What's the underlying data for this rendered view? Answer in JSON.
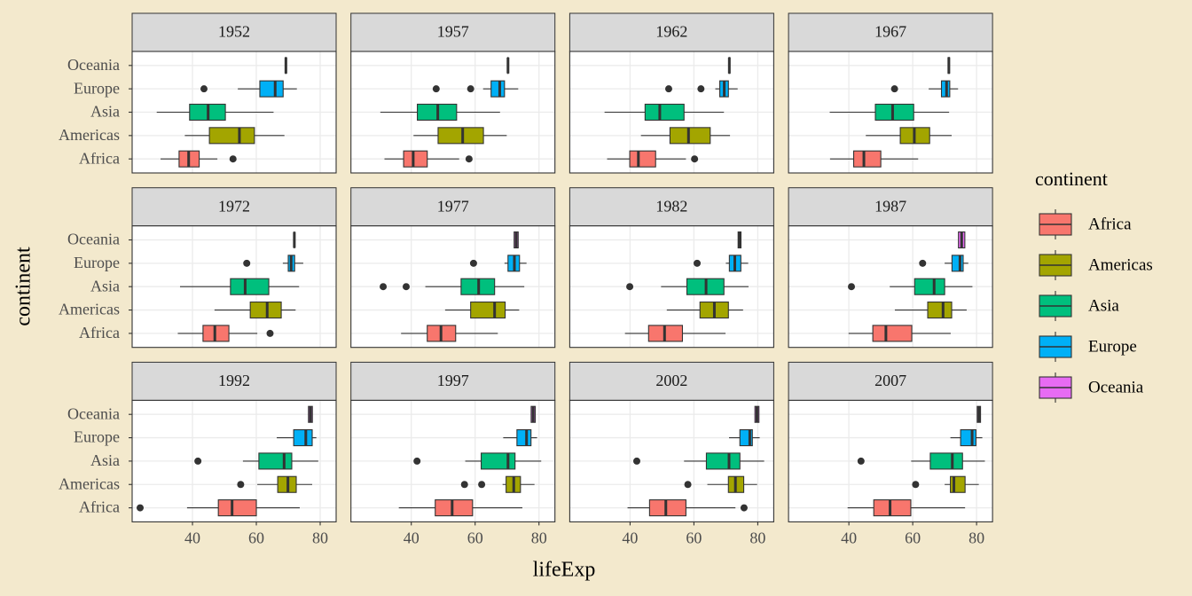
{
  "chart_data": {
    "type": "boxplot",
    "x_label": "lifeExp",
    "y_label": "continent",
    "legend_title": "continent",
    "legend_position": "right",
    "grid": true,
    "categories": [
      "Africa",
      "Americas",
      "Asia",
      "Europe",
      "Oceania"
    ],
    "series": [
      {
        "name": "Africa",
        "color": "#F8766D"
      },
      {
        "name": "Americas",
        "color": "#A3A500"
      },
      {
        "name": "Asia",
        "color": "#00BF7D"
      },
      {
        "name": "Europe",
        "color": "#00B0F6"
      },
      {
        "name": "Oceania",
        "color": "#E76BF3"
      }
    ],
    "xlim": [
      21.1,
      85
    ],
    "xticks": [
      40,
      60,
      80
    ],
    "panels": [
      {
        "title": "1952",
        "boxes": [
          {
            "lower": 30.0,
            "q1": 35.8,
            "median": 38.8,
            "q3": 42.1,
            "upper": 47.8,
            "outliers": [
              52.7
            ]
          },
          {
            "lower": 37.6,
            "q1": 45.3,
            "median": 54.7,
            "q3": 59.4,
            "upper": 68.8,
            "outliers": []
          },
          {
            "lower": 28.8,
            "q1": 39.1,
            "median": 44.9,
            "q3": 50.3,
            "upper": 65.4,
            "outliers": []
          },
          {
            "lower": 54.2,
            "q1": 61.1,
            "median": 65.9,
            "q3": 68.4,
            "upper": 72.7,
            "outliers": [
              43.6
            ]
          },
          {
            "lower": 69.12,
            "q1": 69.12,
            "median": 69.26,
            "q3": 69.39,
            "upper": 69.39,
            "outliers": []
          }
        ]
      },
      {
        "title": "1957",
        "boxes": [
          {
            "lower": 31.6,
            "q1": 37.6,
            "median": 40.6,
            "q3": 45.0,
            "upper": 55.0,
            "outliers": [
              58.1
            ]
          },
          {
            "lower": 40.7,
            "q1": 48.4,
            "median": 56.1,
            "q3": 62.6,
            "upper": 69.9,
            "outliers": []
          },
          {
            "lower": 30.3,
            "q1": 41.9,
            "median": 48.3,
            "q3": 54.2,
            "upper": 67.8,
            "outliers": []
          },
          {
            "lower": 62.5,
            "q1": 65.0,
            "median": 67.7,
            "q3": 69.2,
            "upper": 73.5,
            "outliers": [
              47.8,
              58.6
            ]
          },
          {
            "lower": 70.26,
            "q1": 70.26,
            "median": 70.3,
            "q3": 70.33,
            "upper": 70.33,
            "outliers": []
          }
        ]
      },
      {
        "title": "1962",
        "boxes": [
          {
            "lower": 32.8,
            "q1": 39.9,
            "median": 42.6,
            "q3": 48.0,
            "upper": 57.5,
            "outliers": [
              60.2
            ]
          },
          {
            "lower": 43.4,
            "q1": 52.5,
            "median": 58.3,
            "q3": 65.1,
            "upper": 71.3,
            "outliers": []
          },
          {
            "lower": 32.0,
            "q1": 44.7,
            "median": 49.3,
            "q3": 56.9,
            "upper": 69.4,
            "outliers": []
          },
          {
            "lower": 66.7,
            "q1": 68.1,
            "median": 69.5,
            "q3": 70.8,
            "upper": 73.7,
            "outliers": [
              52.1,
              62.2
            ]
          },
          {
            "lower": 70.99,
            "q1": 70.99,
            "median": 71.09,
            "q3": 71.24,
            "upper": 71.24,
            "outliers": []
          }
        ]
      },
      {
        "title": "1967",
        "boxes": [
          {
            "lower": 34.1,
            "q1": 41.5,
            "median": 44.7,
            "q3": 50.0,
            "upper": 61.7,
            "outliers": []
          },
          {
            "lower": 45.3,
            "q1": 56.1,
            "median": 60.5,
            "q3": 65.3,
            "upper": 72.2,
            "outliers": []
          },
          {
            "lower": 34.0,
            "q1": 48.3,
            "median": 53.7,
            "q3": 60.3,
            "upper": 71.4,
            "outliers": []
          },
          {
            "lower": 65.0,
            "q1": 69.0,
            "median": 70.6,
            "q3": 71.6,
            "upper": 74.2,
            "outliers": [
              54.3
            ]
          },
          {
            "lower": 71.1,
            "q1": 71.1,
            "median": 71.31,
            "q3": 71.52,
            "upper": 71.52,
            "outliers": []
          }
        ]
      },
      {
        "title": "1972",
        "boxes": [
          {
            "lower": 35.4,
            "q1": 43.3,
            "median": 47.0,
            "q3": 51.4,
            "upper": 60.3,
            "outliers": [
              64.3
            ]
          },
          {
            "lower": 46.9,
            "q1": 58.1,
            "median": 63.4,
            "q3": 67.8,
            "upper": 72.3,
            "outliers": []
          },
          {
            "lower": 36.1,
            "q1": 51.9,
            "median": 56.5,
            "q3": 63.9,
            "upper": 73.4,
            "outliers": []
          },
          {
            "lower": 68.3,
            "q1": 70.0,
            "median": 70.9,
            "q3": 72.0,
            "upper": 74.7,
            "outliers": [
              57.0
            ]
          },
          {
            "lower": 71.89,
            "q1": 71.89,
            "median": 71.91,
            "q3": 71.93,
            "upper": 71.93,
            "outliers": []
          }
        ]
      },
      {
        "title": "1977",
        "boxes": [
          {
            "lower": 36.8,
            "q1": 45.0,
            "median": 49.3,
            "q3": 53.9,
            "upper": 67.1,
            "outliers": []
          },
          {
            "lower": 50.6,
            "q1": 58.6,
            "median": 66.1,
            "q3": 69.4,
            "upper": 73.8,
            "outliers": []
          },
          {
            "lower": 44.4,
            "q1": 55.6,
            "median": 61.1,
            "q3": 66.1,
            "upper": 75.4,
            "outliers": [
              31.2,
              38.4
            ]
          },
          {
            "lower": 69.2,
            "q1": 70.3,
            "median": 72.3,
            "q3": 73.9,
            "upper": 76.1,
            "outliers": [
              59.5
            ]
          },
          {
            "lower": 72.22,
            "q1": 72.22,
            "median": 72.86,
            "q3": 73.49,
            "upper": 73.49,
            "outliers": []
          }
        ]
      },
      {
        "title": "1982",
        "boxes": [
          {
            "lower": 38.4,
            "q1": 45.8,
            "median": 50.8,
            "q3": 56.4,
            "upper": 69.9,
            "outliers": []
          },
          {
            "lower": 51.5,
            "q1": 61.9,
            "median": 66.4,
            "q3": 70.8,
            "upper": 75.4,
            "outliers": []
          },
          {
            "lower": 49.7,
            "q1": 57.8,
            "median": 63.8,
            "q3": 69.4,
            "upper": 77.1,
            "outliers": [
              39.9
            ]
          },
          {
            "lower": 70.0,
            "q1": 71.1,
            "median": 72.8,
            "q3": 74.7,
            "upper": 77.0,
            "outliers": [
              61.0
            ]
          },
          {
            "lower": 73.84,
            "q1": 73.84,
            "median": 74.29,
            "q3": 74.74,
            "upper": 74.74,
            "outliers": []
          }
        ]
      },
      {
        "title": "1987",
        "boxes": [
          {
            "lower": 39.9,
            "q1": 47.5,
            "median": 51.6,
            "q3": 59.7,
            "upper": 71.9,
            "outliers": []
          },
          {
            "lower": 54.4,
            "q1": 64.7,
            "median": 69.5,
            "q3": 72.2,
            "upper": 76.9,
            "outliers": []
          },
          {
            "lower": 52.8,
            "q1": 60.6,
            "median": 66.7,
            "q3": 70.0,
            "upper": 78.7,
            "outliers": [
              40.8
            ]
          },
          {
            "lower": 70.0,
            "q1": 72.3,
            "median": 74.8,
            "q3": 75.8,
            "upper": 77.4,
            "outliers": [
              63.1
            ]
          },
          {
            "lower": 74.32,
            "q1": 74.32,
            "median": 75.32,
            "q3": 76.32,
            "upper": 76.32,
            "outliers": []
          }
        ]
      },
      {
        "title": "1992",
        "boxes": [
          {
            "lower": 38.3,
            "q1": 48.1,
            "median": 52.4,
            "q3": 60.0,
            "upper": 73.6,
            "outliers": [
              23.6
            ]
          },
          {
            "lower": 60.3,
            "q1": 66.7,
            "median": 69.9,
            "q3": 72.5,
            "upper": 77.5,
            "outliers": [
              55.1
            ]
          },
          {
            "lower": 55.8,
            "q1": 60.8,
            "median": 68.7,
            "q3": 71.1,
            "upper": 79.4,
            "outliers": [
              41.7
            ]
          },
          {
            "lower": 66.4,
            "q1": 71.7,
            "median": 75.5,
            "q3": 77.5,
            "upper": 78.8,
            "outliers": []
          },
          {
            "lower": 76.33,
            "q1": 76.33,
            "median": 76.95,
            "q3": 77.56,
            "upper": 77.56,
            "outliers": []
          }
        ]
      },
      {
        "title": "1997",
        "boxes": [
          {
            "lower": 36.1,
            "q1": 47.5,
            "median": 52.8,
            "q3": 59.2,
            "upper": 74.8,
            "outliers": []
          },
          {
            "lower": 68.6,
            "q1": 69.7,
            "median": 72.1,
            "q3": 74.2,
            "upper": 78.6,
            "outliers": [
              56.67,
              62.05
            ]
          },
          {
            "lower": 56.9,
            "q1": 61.9,
            "median": 70.3,
            "q3": 72.5,
            "upper": 80.7,
            "outliers": [
              41.8
            ]
          },
          {
            "lower": 68.8,
            "q1": 73.1,
            "median": 76.1,
            "q3": 77.5,
            "upper": 79.4,
            "outliers": []
          },
          {
            "lower": 77.55,
            "q1": 77.55,
            "median": 78.19,
            "q3": 78.83,
            "upper": 78.83,
            "outliers": []
          }
        ]
      },
      {
        "title": "2002",
        "boxes": [
          {
            "lower": 39.2,
            "q1": 46.1,
            "median": 51.2,
            "q3": 57.5,
            "upper": 73.0,
            "outliers": [
              75.7
            ]
          },
          {
            "lower": 64.2,
            "q1": 70.8,
            "median": 73.0,
            "q3": 75.6,
            "upper": 79.8,
            "outliers": [
              58.1
            ]
          },
          {
            "lower": 56.9,
            "q1": 63.9,
            "median": 71.0,
            "q3": 74.4,
            "upper": 82.0,
            "outliers": [
              42.1
            ]
          },
          {
            "lower": 71.0,
            "q1": 74.4,
            "median": 77.5,
            "q3": 78.3,
            "upper": 80.6,
            "outliers": []
          },
          {
            "lower": 79.11,
            "q1": 79.11,
            "median": 79.74,
            "q3": 80.37,
            "upper": 80.37,
            "outliers": []
          }
        ]
      },
      {
        "title": "2007",
        "boxes": [
          {
            "lower": 39.6,
            "q1": 47.8,
            "median": 52.9,
            "q3": 59.4,
            "upper": 76.4,
            "outliers": []
          },
          {
            "lower": 70.0,
            "q1": 71.8,
            "median": 72.9,
            "q3": 76.4,
            "upper": 80.7,
            "outliers": [
              60.9
            ]
          },
          {
            "lower": 59.5,
            "q1": 65.5,
            "median": 72.4,
            "q3": 75.6,
            "upper": 82.6,
            "outliers": [
              43.8
            ]
          },
          {
            "lower": 71.8,
            "q1": 75.0,
            "median": 78.6,
            "q3": 79.8,
            "upper": 81.8,
            "outliers": []
          },
          {
            "lower": 80.2,
            "q1": 80.2,
            "median": 80.72,
            "q3": 81.24,
            "upper": 81.24,
            "outliers": []
          }
        ]
      }
    ]
  }
}
